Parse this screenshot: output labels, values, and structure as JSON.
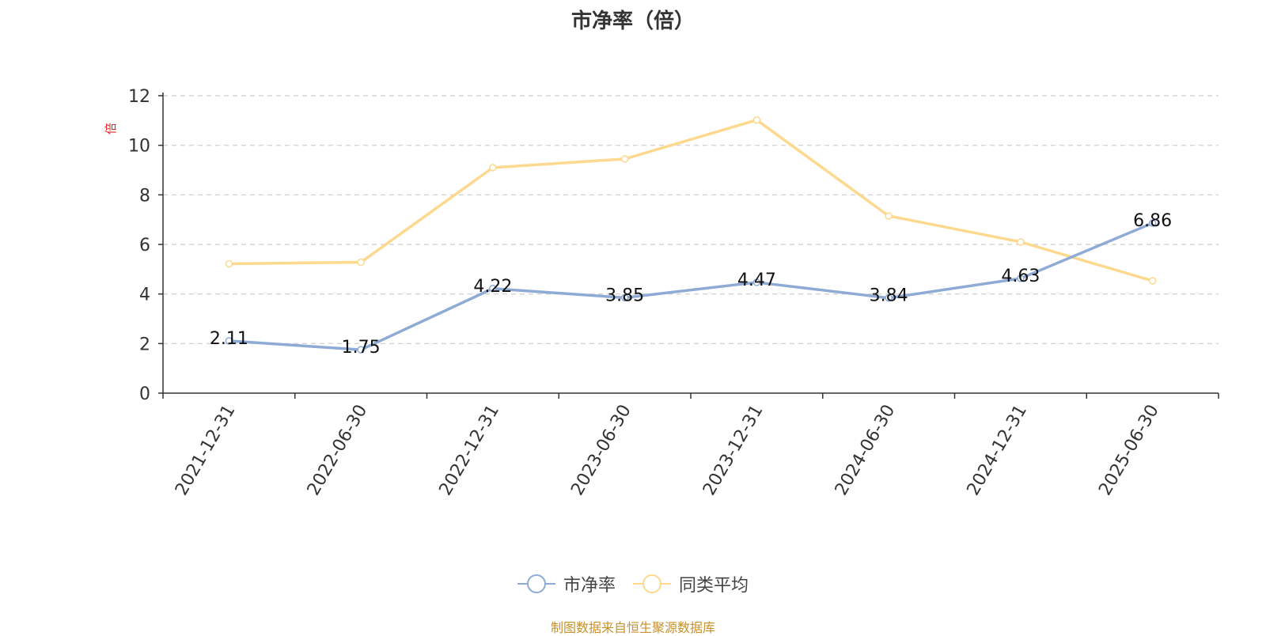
{
  "title": "市净率（倍）",
  "y_unit": "倍",
  "source": "制图数据来自恒生聚源数据库",
  "colors": {
    "series1": "#8eabd6",
    "series2": "#fcd98f",
    "axis": "#333333",
    "grid": "#cccccc",
    "unit": "#e8262a"
  },
  "chart_data": {
    "type": "line",
    "categories": [
      "2021-12-31",
      "2022-06-30",
      "2022-12-31",
      "2023-06-30",
      "2023-12-31",
      "2024-06-30",
      "2024-12-31",
      "2025-06-30"
    ],
    "series": [
      {
        "name": "市净率",
        "values": [
          2.11,
          1.75,
          4.22,
          3.85,
          4.47,
          3.84,
          4.63,
          6.86
        ],
        "labels": [
          "2.11",
          "1.75",
          "4.22",
          "3.85",
          "4.47",
          "3.84",
          "4.63",
          "6.86"
        ]
      },
      {
        "name": "同类平均",
        "values": [
          5.22,
          5.28,
          9.1,
          9.45,
          11.02,
          7.15,
          6.1,
          4.53
        ]
      }
    ],
    "ylim": [
      0,
      12
    ],
    "yticks": [
      0,
      2,
      4,
      6,
      8,
      10,
      12
    ],
    "grid": true,
    "legend_position": "bottom-center"
  }
}
